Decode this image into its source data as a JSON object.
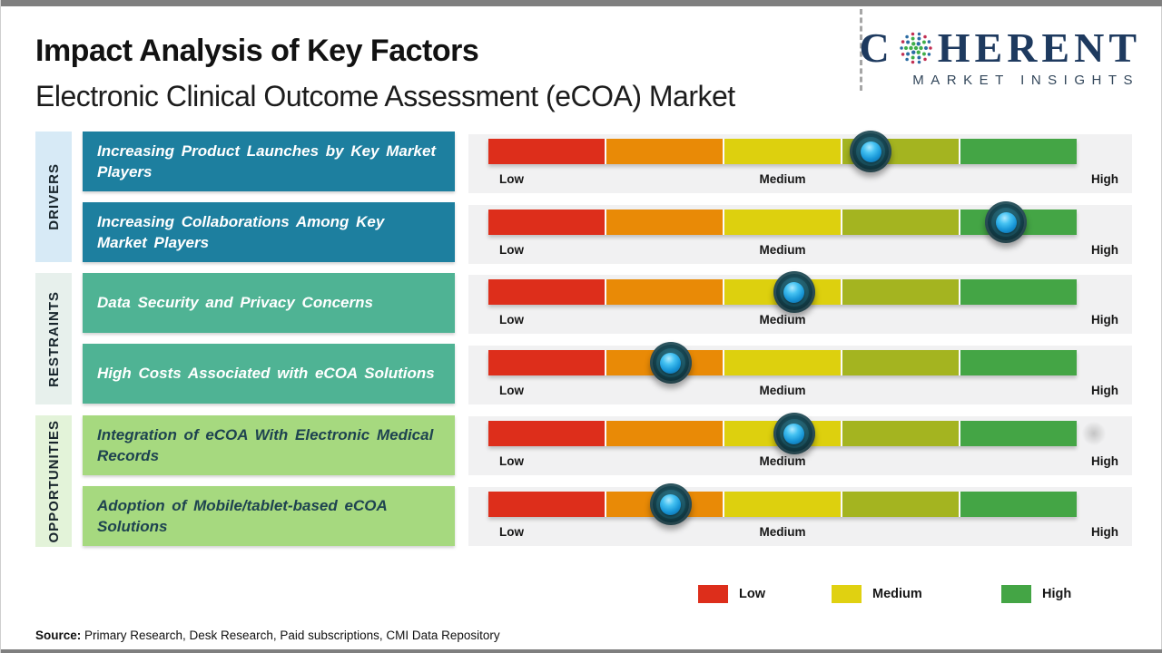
{
  "header": {
    "title": "Impact Analysis of Key Factors",
    "subtitle": "Electronic Clinical Outcome Assessment (eCOA) Market",
    "logo": {
      "word_start": "C",
      "word_end": "HERENT",
      "tagline": "MARKET INSIGHTS"
    }
  },
  "chart_data": {
    "type": "bar",
    "title": "Impact Analysis of Key Factors",
    "subtitle": "Electronic Clinical Outcome Assessment (eCOA) Market",
    "scale": {
      "labels": {
        "low": "Low",
        "medium": "Medium",
        "high": "High"
      },
      "range": [
        0,
        1
      ],
      "segment_colors": [
        "#dd2e1b",
        "#e98a06",
        "#ddd00e",
        "#a4b420",
        "#44a545"
      ],
      "grid": false
    },
    "groups": [
      {
        "name": "DRIVERS",
        "color": "#1d7f9f",
        "strip_color": "#d7eaf6",
        "factors": [
          {
            "label": "Increasing Product Launches by Key Market Players",
            "impact": 0.65
          },
          {
            "label": "Increasing Collaborations Among Key Market Players",
            "impact": 0.88
          }
        ]
      },
      {
        "name": "RESTRAINTS",
        "color": "#4fb394",
        "strip_color": "#e7f0ec",
        "factors": [
          {
            "label": "Data Security and Privacy Concerns",
            "impact": 0.52
          },
          {
            "label": "High Costs Associated with eCOA Solutions",
            "impact": 0.31
          }
        ]
      },
      {
        "name": "OPPORTUNITIES",
        "color": "#a6d97f",
        "strip_color": "#e3f3d9",
        "factors": [
          {
            "label": "Integration of eCOA With Electronic Medical Records",
            "impact": 0.52
          },
          {
            "label": "Adoption of Mobile/tablet-based eCOA Solutions",
            "impact": 0.31
          }
        ]
      }
    ],
    "legend": [
      {
        "label": "Low",
        "color": "#dd2e1b"
      },
      {
        "label": "Medium",
        "color": "#e0d111"
      },
      {
        "label": "High",
        "color": "#44a545"
      }
    ],
    "legend_position": "bottom-right"
  },
  "source": {
    "prefix": "Source:",
    "text": " Primary Research, Desk Research, Paid subscriptions, CMI Data Repository"
  }
}
